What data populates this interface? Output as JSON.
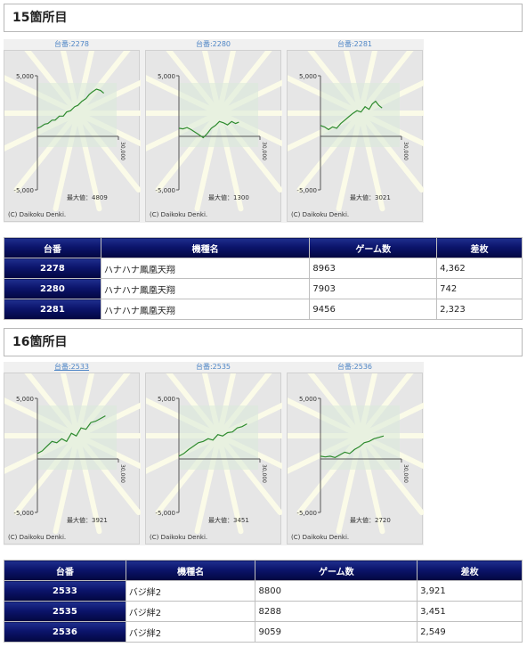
{
  "sections": [
    {
      "title": "15箇所目",
      "graphs": [
        {
          "machine": "台番:2278",
          "ymax_label": "5,000",
          "ymin_label": "-5,000",
          "x_label": "30,000",
          "max_text": "最大値：4809",
          "copyright": "(C) Daikoku Denki.",
          "underline": false
        },
        {
          "machine": "台番:2280",
          "ymax_label": "5,000",
          "ymin_label": "-5,000",
          "x_label": "30,000",
          "max_text": "最大値：1300",
          "copyright": "(C) Daikoku Denki.",
          "underline": false
        },
        {
          "machine": "台番:2281",
          "ymax_label": "5,000",
          "ymin_label": "-5,000",
          "x_label": "30,000",
          "max_text": "最大値：3021",
          "copyright": "(C) Daikoku Denki.",
          "underline": false
        }
      ],
      "table": {
        "headers": [
          "台番",
          "機種名",
          "ゲーム数",
          "差枚"
        ],
        "rows": [
          {
            "id": "2278",
            "model": "ハナハナ鳳凰天翔",
            "games": "8963",
            "diff": "4,362"
          },
          {
            "id": "2280",
            "model": "ハナハナ鳳凰天翔",
            "games": "7903",
            "diff": "742"
          },
          {
            "id": "2281",
            "model": "ハナハナ鳳凰天翔",
            "games": "9456",
            "diff": "2,323"
          }
        ]
      }
    },
    {
      "title": "16箇所目",
      "graphs": [
        {
          "machine": "台番:2533",
          "ymax_label": "5,000",
          "ymin_label": "-5,000",
          "x_label": "30,000",
          "max_text": "最大値：3921",
          "copyright": "(C) Daikoku Denki.",
          "underline": true
        },
        {
          "machine": "台番:2535",
          "ymax_label": "5,000",
          "ymin_label": "-5,000",
          "x_label": "30,000",
          "max_text": "最大値：3451",
          "copyright": "(C) Daikoku Denki.",
          "underline": false
        },
        {
          "machine": "台番:2536",
          "ymax_label": "5,000",
          "ymin_label": "-5,000",
          "x_label": "30,000",
          "max_text": "最大値：2720",
          "copyright": "(C) Daikoku Denki.",
          "underline": false
        }
      ],
      "table": {
        "headers": [
          "台番",
          "機種名",
          "ゲーム数",
          "差枚"
        ],
        "rows": [
          {
            "id": "2533",
            "model": "バジ絆2",
            "games": "8800",
            "diff": "3,921"
          },
          {
            "id": "2535",
            "model": "バジ絆2",
            "games": "8288",
            "diff": "3,451"
          },
          {
            "id": "2536",
            "model": "バジ絆2",
            "games": "9059",
            "diff": "2,549"
          }
        ]
      }
    }
  ],
  "colors": {
    "header_navy": "#0b146b",
    "line_green": "#2e8b2e",
    "link_blue": "#4f86c6"
  }
}
